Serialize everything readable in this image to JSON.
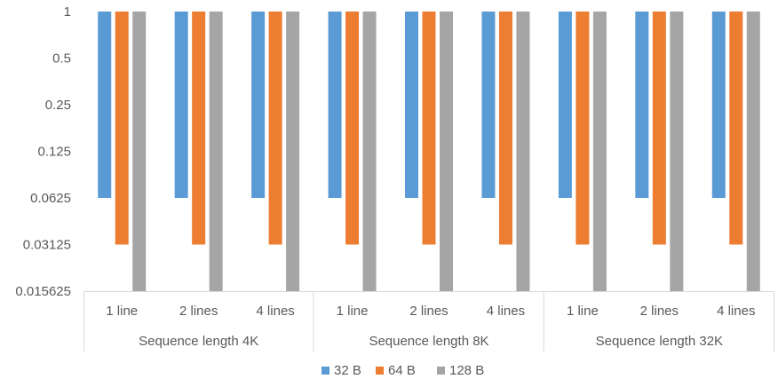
{
  "chart_data": {
    "type": "bar",
    "y_scale": "log2",
    "ylim": [
      0.015625,
      1
    ],
    "yticks": [
      "1",
      "0.5",
      "0.25",
      "0.125",
      "0.0625",
      "0.03125",
      "0.015625"
    ],
    "categories": [
      "1 line",
      "2 lines",
      "4 lines",
      "1 line",
      "2 lines",
      "4 lines",
      "1 line",
      "2 lines",
      "4 lines"
    ],
    "groups": [
      {
        "label": "Sequence length 4K",
        "span": 3
      },
      {
        "label": "Sequence length 8K",
        "span": 3
      },
      {
        "label": "Sequence length 32K",
        "span": 3
      }
    ],
    "series": [
      {
        "name": "32 B",
        "color": "#5B9BD5",
        "values": [
          0.0625,
          0.0625,
          0.0625,
          0.0625,
          0.0625,
          0.0625,
          0.0625,
          0.0625,
          0.0625
        ]
      },
      {
        "name": "64 B",
        "color": "#ED7D31",
        "values": [
          0.03125,
          0.03125,
          0.03125,
          0.03125,
          0.03125,
          0.03125,
          0.03125,
          0.03125,
          0.03125
        ]
      },
      {
        "name": "128 B",
        "color": "#A5A5A5",
        "values": [
          0.015625,
          0.015625,
          0.015625,
          0.015625,
          0.015625,
          0.015625,
          0.015625,
          0.015625,
          0.015625
        ]
      }
    ],
    "legend_position": "bottom",
    "grid": false
  }
}
